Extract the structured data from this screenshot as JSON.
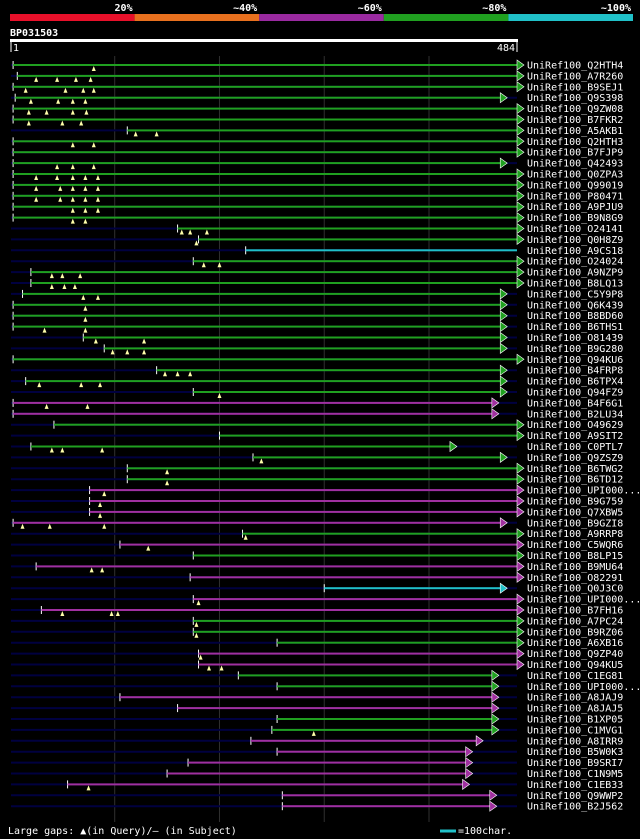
{
  "chart_data": {
    "type": "alignment-overview",
    "query": {
      "id": "BP031503",
      "start": "1",
      "end": "484",
      "length": 484
    },
    "identity_scale": [
      {
        "label": "20%",
        "color": "#e8102a"
      },
      {
        "label": "~40%",
        "color": "#e8701e"
      },
      {
        "label": "~60%",
        "color": "#9a2aa0"
      },
      {
        "label": "~80%",
        "color": "#20a020"
      },
      {
        "label": "~100%",
        "color": "#20c0c8"
      }
    ],
    "legend": {
      "gaps_text": "Large gaps: ▲(in Query)/– (in Subject)",
      "scale_text": "=100char."
    },
    "colors": {
      "green": "#20a020",
      "purple": "#a030a0",
      "cyan": "#20c0c8",
      "track": "#000040",
      "grid": "#303030"
    },
    "hits": [
      {
        "name": "UniRef100_Q2HTH4",
        "start": 3,
        "end": 484,
        "color": "green",
        "marks": [
          80
        ],
        "endFlag": true
      },
      {
        "name": "UniRef100_A7R260",
        "start": 7,
        "end": 484,
        "color": "green",
        "marks": [
          25,
          45,
          63,
          77
        ],
        "endFlag": true
      },
      {
        "name": "UniRef100_B9SEJ1",
        "start": 3,
        "end": 484,
        "color": "green",
        "marks": [
          15,
          53,
          70,
          80
        ],
        "endFlag": true
      },
      {
        "name": "UniRef100_Q9S398",
        "start": 5,
        "end": 468,
        "color": "green",
        "marks": [
          20,
          46,
          60,
          72
        ],
        "endFlag": true
      },
      {
        "name": "UniRef100_Q9ZW08",
        "start": 3,
        "end": 484,
        "color": "green",
        "marks": [
          18,
          35,
          60,
          73
        ],
        "endFlag": true
      },
      {
        "name": "UniRef100_B7FKR2",
        "start": 3,
        "end": 484,
        "color": "green",
        "marks": [
          18,
          50,
          68
        ],
        "endFlag": true
      },
      {
        "name": "UniRef100_A5AKB1",
        "start": 112,
        "end": 484,
        "color": "green",
        "marks": [
          120,
          140
        ],
        "endFlag": true
      },
      {
        "name": "UniRef100_Q2HTH3",
        "start": 3,
        "end": 484,
        "color": "green",
        "marks": [
          60,
          80
        ],
        "endFlag": true
      },
      {
        "name": "UniRef100_B7FJP9",
        "start": 3,
        "end": 484,
        "color": "green",
        "marks": [],
        "endFlag": true
      },
      {
        "name": "UniRef100_Q42493",
        "start": 3,
        "end": 468,
        "color": "green",
        "marks": [
          45,
          60,
          80
        ],
        "endFlag": true
      },
      {
        "name": "UniRef100_Q0ZPA3",
        "start": 3,
        "end": 484,
        "color": "green",
        "marks": [
          25,
          45,
          60,
          72,
          84
        ],
        "endFlag": true
      },
      {
        "name": "UniRef100_Q99019",
        "start": 3,
        "end": 484,
        "color": "green",
        "marks": [
          25,
          48,
          60,
          72,
          84
        ],
        "endFlag": true
      },
      {
        "name": "UniRef100_P80471",
        "start": 3,
        "end": 484,
        "color": "green",
        "marks": [
          25,
          48,
          60,
          72,
          84
        ],
        "endFlag": true
      },
      {
        "name": "UniRef100_A9PJU9",
        "start": 3,
        "end": 484,
        "color": "green",
        "marks": [
          60,
          72,
          84
        ],
        "endFlag": true
      },
      {
        "name": "UniRef100_B9N8G9",
        "start": 3,
        "end": 484,
        "color": "green",
        "marks": [
          60,
          72
        ],
        "endFlag": true
      },
      {
        "name": "UniRef100_O24141",
        "start": 160,
        "end": 484,
        "color": "green",
        "marks": [
          164,
          172,
          188
        ],
        "endFlag": true
      },
      {
        "name": "UniRef100_Q0H8Z9",
        "start": 180,
        "end": 484,
        "color": "green",
        "marks": [
          178
        ],
        "endFlag": true
      },
      {
        "name": "UniRef100_A9CS18",
        "start": 225,
        "end": 484,
        "color": "cyan",
        "marks": [],
        "endFlag": false
      },
      {
        "name": "UniRef100_O24024",
        "start": 175,
        "end": 484,
        "color": "green",
        "marks": [
          185,
          200
        ],
        "endFlag": true
      },
      {
        "name": "UniRef100_A9NZP9",
        "start": 20,
        "end": 484,
        "color": "green",
        "marks": [
          40,
          50,
          67
        ],
        "endFlag": true
      },
      {
        "name": "UniRef100_B8LQ13",
        "start": 20,
        "end": 484,
        "color": "green",
        "marks": [
          40,
          52,
          62
        ],
        "endFlag": true
      },
      {
        "name": "UniRef100_C5Y9P8",
        "start": 12,
        "end": 468,
        "color": "green",
        "marks": [
          70,
          84
        ],
        "endFlag": true
      },
      {
        "name": "UniRef100_Q6K439",
        "start": 3,
        "end": 468,
        "color": "green",
        "marks": [
          72
        ],
        "endFlag": true
      },
      {
        "name": "UniRef100_B8BD60",
        "start": 3,
        "end": 468,
        "color": "green",
        "marks": [
          72
        ],
        "endFlag": true
      },
      {
        "name": "UniRef100_B6THS1",
        "start": 3,
        "end": 468,
        "color": "green",
        "marks": [
          33,
          72
        ],
        "endFlag": true
      },
      {
        "name": "UniRef100_O81439",
        "start": 70,
        "end": 468,
        "color": "green",
        "marks": [
          82,
          128
        ],
        "endFlag": true
      },
      {
        "name": "UniRef100_B9G280",
        "start": 90,
        "end": 468,
        "color": "green",
        "marks": [
          98,
          112,
          128
        ],
        "endFlag": true
      },
      {
        "name": "UniRef100_Q94KU6",
        "start": 3,
        "end": 484,
        "color": "green",
        "marks": [],
        "endFlag": true
      },
      {
        "name": "UniRef100_B4FRP8",
        "start": 140,
        "end": 468,
        "color": "green",
        "marks": [
          148,
          160,
          172
        ],
        "endFlag": true
      },
      {
        "name": "UniRef100_B6TPX4",
        "start": 15,
        "end": 468,
        "color": "green",
        "marks": [
          28,
          68,
          86
        ],
        "endFlag": true
      },
      {
        "name": "UniRef100_Q94FZ9",
        "start": 175,
        "end": 468,
        "color": "green",
        "marks": [
          200
        ],
        "endFlag": true
      },
      {
        "name": "UniRef100_B4F6G1",
        "start": 3,
        "end": 460,
        "color": "purple",
        "marks": [
          35,
          74
        ],
        "endFlag": true
      },
      {
        "name": "UniRef100_B2LU34",
        "start": 3,
        "end": 460,
        "color": "purple",
        "marks": [],
        "endFlag": true
      },
      {
        "name": "UniRef100_O49629",
        "start": 42,
        "end": 484,
        "color": "green",
        "marks": [],
        "endFlag": true
      },
      {
        "name": "UniRef100_A9SIT2",
        "start": 200,
        "end": 484,
        "color": "green",
        "marks": [],
        "endFlag": true
      },
      {
        "name": "UniRef100_C0PTL7",
        "start": 20,
        "end": 420,
        "color": "green",
        "marks": [
          40,
          50,
          88
        ],
        "endFlag": true
      },
      {
        "name": "UniRef100_Q9ZSZ9",
        "start": 232,
        "end": 468,
        "color": "green",
        "marks": [
          240
        ],
        "endFlag": true
      },
      {
        "name": "UniRef100_B6TWG2",
        "start": 112,
        "end": 484,
        "color": "green",
        "marks": [
          150
        ],
        "endFlag": true
      },
      {
        "name": "UniRef100_B6TD12",
        "start": 112,
        "end": 484,
        "color": "green",
        "marks": [
          150
        ],
        "endFlag": true
      },
      {
        "name": "UniRef100_UPI000...",
        "start": 76,
        "end": 484,
        "color": "purple",
        "marks": [
          90
        ],
        "endFlag": true
      },
      {
        "name": "UniRef100_B9G759",
        "start": 76,
        "end": 484,
        "color": "purple",
        "marks": [
          86
        ],
        "endFlag": true
      },
      {
        "name": "UniRef100_Q7XBW5",
        "start": 76,
        "end": 484,
        "color": "purple",
        "marks": [
          86
        ],
        "endFlag": true
      },
      {
        "name": "UniRef100_B9GZI8",
        "start": 3,
        "end": 468,
        "color": "purple",
        "marks": [
          12,
          38,
          90
        ],
        "endFlag": true
      },
      {
        "name": "UniRef100_A9RRP8",
        "start": 222,
        "end": 484,
        "color": "green",
        "marks": [
          225
        ],
        "endFlag": true
      },
      {
        "name": "UniRef100_C5WQR6",
        "start": 105,
        "end": 484,
        "color": "purple",
        "marks": [
          132
        ],
        "endFlag": true
      },
      {
        "name": "UniRef100_B8LP15",
        "start": 175,
        "end": 484,
        "color": "green",
        "marks": [],
        "endFlag": true
      },
      {
        "name": "UniRef100_B9MU64",
        "start": 25,
        "end": 484,
        "color": "purple",
        "marks": [
          78,
          88
        ],
        "endFlag": true
      },
      {
        "name": "UniRef100_O82291",
        "start": 172,
        "end": 484,
        "color": "purple",
        "marks": [],
        "endFlag": true
      },
      {
        "name": "UniRef100_Q0J3C0",
        "start": 300,
        "end": 468,
        "color": "cyan",
        "marks": [],
        "endFlag": true
      },
      {
        "name": "UniRef100_UPI000...",
        "start": 175,
        "end": 484,
        "color": "purple",
        "marks": [
          180
        ],
        "endFlag": true
      },
      {
        "name": "UniRef100_B7FH16",
        "start": 30,
        "end": 484,
        "color": "purple",
        "marks": [
          50,
          97,
          103
        ],
        "endFlag": true
      },
      {
        "name": "UniRef100_A7PC24",
        "start": 175,
        "end": 484,
        "color": "green",
        "marks": [
          178
        ],
        "endFlag": true
      },
      {
        "name": "UniRef100_B9RZ06",
        "start": 175,
        "end": 484,
        "color": "green",
        "marks": [
          178
        ],
        "endFlag": true
      },
      {
        "name": "UniRef100_A6XB16",
        "start": 255,
        "end": 484,
        "color": "green",
        "marks": [],
        "endFlag": true
      },
      {
        "name": "UniRef100_Q9ZP40",
        "start": 180,
        "end": 484,
        "color": "purple",
        "marks": [
          182
        ],
        "endFlag": true
      },
      {
        "name": "UniRef100_Q94KU5",
        "start": 180,
        "end": 484,
        "color": "purple",
        "marks": [
          190,
          202
        ],
        "endFlag": true
      },
      {
        "name": "UniRef100_C1EG81",
        "start": 218,
        "end": 460,
        "color": "green",
        "marks": [],
        "endFlag": true
      },
      {
        "name": "UniRef100_UPI000...",
        "start": 255,
        "end": 460,
        "color": "green",
        "marks": [],
        "endFlag": true
      },
      {
        "name": "UniRef100_A8JAJ9",
        "start": 105,
        "end": 460,
        "color": "purple",
        "marks": [],
        "endFlag": true
      },
      {
        "name": "UniRef100_A8JAJ5",
        "start": 160,
        "end": 460,
        "color": "purple",
        "marks": [],
        "endFlag": true
      },
      {
        "name": "UniRef100_B1XP05",
        "start": 255,
        "end": 460,
        "color": "green",
        "marks": [],
        "endFlag": true
      },
      {
        "name": "UniRef100_C1MVG1",
        "start": 250,
        "end": 460,
        "color": "green",
        "marks": [
          290
        ],
        "endFlag": true
      },
      {
        "name": "UniRef100_A8IRR9",
        "start": 230,
        "end": 445,
        "color": "purple",
        "marks": [],
        "endFlag": true
      },
      {
        "name": "UniRef100_B5W0K3",
        "start": 255,
        "end": 435,
        "color": "purple",
        "marks": [],
        "endFlag": true
      },
      {
        "name": "UniRef100_B9SRI7",
        "start": 170,
        "end": 435,
        "color": "purple",
        "marks": [],
        "endFlag": true
      },
      {
        "name": "UniRef100_C1N9M5",
        "start": 150,
        "end": 435,
        "color": "purple",
        "marks": [],
        "endFlag": true
      },
      {
        "name": "UniRef100_C1EB33",
        "start": 55,
        "end": 432,
        "color": "purple",
        "marks": [
          75
        ],
        "endFlag": true
      },
      {
        "name": "UniRef100_Q9WWP2",
        "start": 260,
        "end": 458,
        "color": "purple",
        "marks": [],
        "endFlag": true
      },
      {
        "name": "UniRef100_B2J562",
        "start": 260,
        "end": 458,
        "color": "purple",
        "marks": [],
        "endFlag": true
      }
    ]
  }
}
